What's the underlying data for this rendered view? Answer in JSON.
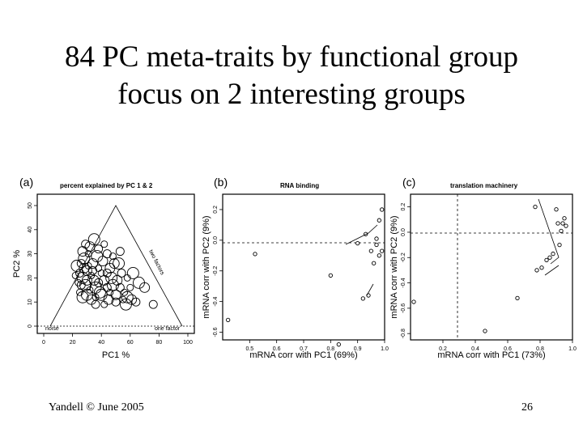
{
  "slide": {
    "title_line1": "84 PC meta-traits by functional group",
    "title_line2": "focus on 2 interesting groups",
    "footer_left": "Yandell © June 2005",
    "page_number": "26"
  },
  "chart_data": [
    {
      "panel": "(a)",
      "type": "scatter",
      "title": "percent explained by PC 1 & 2",
      "xlabel": "PC1 %",
      "ylabel": "PC2 %",
      "xlim": [
        0,
        100
      ],
      "ylim": [
        0,
        50
      ],
      "xticks": [
        "0",
        "20",
        "40",
        "60",
        "80",
        "100"
      ],
      "yticks": [
        "0",
        "10",
        "20",
        "30",
        "40",
        "50"
      ],
      "annotations": [
        "noise",
        "one factor",
        "two factors"
      ],
      "grid": false,
      "points": [
        [
          24,
          18
        ],
        [
          27,
          20
        ],
        [
          30,
          23
        ],
        [
          26,
          26
        ],
        [
          33,
          21
        ],
        [
          29,
          17
        ],
        [
          35,
          19
        ],
        [
          25,
          22
        ],
        [
          31,
          25
        ],
        [
          28,
          28
        ],
        [
          34,
          26
        ],
        [
          38,
          18
        ],
        [
          40,
          22
        ],
        [
          36,
          16
        ],
        [
          42,
          19
        ],
        [
          44,
          16
        ],
        [
          32,
          15
        ],
        [
          30,
          13
        ],
        [
          28,
          24
        ],
        [
          26,
          17
        ],
        [
          46,
          14
        ],
        [
          48,
          17
        ],
        [
          50,
          13
        ],
        [
          53,
          16
        ],
        [
          56,
          14
        ],
        [
          58,
          12
        ],
        [
          61,
          11
        ],
        [
          64,
          10
        ],
        [
          36,
          12
        ],
        [
          39,
          14
        ],
        [
          41,
          27
        ],
        [
          44,
          30
        ],
        [
          48,
          29
        ],
        [
          52,
          26
        ],
        [
          46,
          24
        ],
        [
          38,
          32
        ],
        [
          42,
          34
        ],
        [
          35,
          36
        ],
        [
          32,
          33
        ],
        [
          44,
          22
        ],
        [
          22,
          21
        ],
        [
          23,
          25
        ],
        [
          27,
          31
        ],
        [
          29,
          34
        ],
        [
          31,
          30
        ],
        [
          37,
          29
        ],
        [
          45,
          11
        ],
        [
          50,
          10
        ],
        [
          55,
          11
        ],
        [
          66,
          18
        ],
        [
          70,
          16
        ],
        [
          76,
          9
        ],
        [
          58,
          20
        ],
        [
          62,
          22
        ],
        [
          33,
          11
        ],
        [
          36,
          9
        ],
        [
          42,
          9
        ],
        [
          47,
          20
        ],
        [
          30,
          19
        ],
        [
          34,
          23
        ],
        [
          38,
          24
        ],
        [
          40,
          13
        ],
        [
          51,
          19
        ],
        [
          54,
          22
        ],
        [
          25,
          14
        ],
        [
          27,
          12
        ],
        [
          49,
          26
        ],
        [
          53,
          31
        ],
        [
          60,
          16
        ],
        [
          57,
          9
        ]
      ]
    },
    {
      "panel": "(b)",
      "type": "scatter",
      "title": "RNA binding",
      "xlabel": "mRNA corr with PC1 (69%)",
      "ylabel": "mRNA corr with PC2 (9%)",
      "xlim": [
        0.4,
        1.0
      ],
      "ylim": [
        -0.65,
        0.3
      ],
      "xticks": [
        "0.5",
        "0.6",
        "0.7",
        "0.8",
        "0.9",
        "1.0"
      ],
      "yticks": [
        "-0.6",
        "-0.4",
        "-0.2",
        "0.0",
        "0.2"
      ],
      "reference_line": "y = 0 (dashed)",
      "grid": false,
      "points": [
        [
          0.42,
          -0.52
        ],
        [
          0.52,
          -0.09
        ],
        [
          0.8,
          -0.23
        ],
        [
          0.83,
          -0.68
        ],
        [
          0.9,
          -0.02
        ],
        [
          0.92,
          -0.38
        ],
        [
          0.94,
          -0.36
        ],
        [
          0.95,
          -0.07
        ],
        [
          0.96,
          -0.15
        ],
        [
          0.97,
          0.01
        ],
        [
          0.97,
          -0.03
        ],
        [
          0.98,
          0.13
        ],
        [
          0.98,
          -0.1
        ],
        [
          0.99,
          0.2
        ],
        [
          0.99,
          -0.07
        ],
        [
          0.93,
          0.04
        ]
      ]
    },
    {
      "panel": "(c)",
      "type": "scatter",
      "title": "translation machinery",
      "xlabel": "mRNA corr with PC1 (73%)",
      "ylabel": "mRNA corr with PC2 (9%)",
      "xlim": [
        0.0,
        1.0
      ],
      "ylim": [
        -0.85,
        0.3
      ],
      "xticks": [
        "0.2",
        "0.4",
        "0.6",
        "0.8",
        "1.0"
      ],
      "yticks": [
        "-0.8",
        "-0.6",
        "-0.4",
        "-0.2",
        "0.0",
        "0.2"
      ],
      "reference_lines": [
        "y = 0 (dashed)",
        "x = 0 (dashed)"
      ],
      "grid": false,
      "points": [
        [
          0.02,
          -0.55
        ],
        [
          0.46,
          -0.78
        ],
        [
          0.66,
          -0.52
        ],
        [
          0.77,
          0.2
        ],
        [
          0.78,
          -0.3
        ],
        [
          0.81,
          -0.28
        ],
        [
          0.84,
          -0.22
        ],
        [
          0.86,
          -0.2
        ],
        [
          0.88,
          -0.17
        ],
        [
          0.9,
          0.18
        ],
        [
          0.91,
          0.07
        ],
        [
          0.92,
          -0.1
        ],
        [
          0.93,
          0.01
        ],
        [
          0.94,
          0.07
        ],
        [
          0.95,
          0.11
        ],
        [
          0.96,
          0.05
        ]
      ]
    }
  ]
}
